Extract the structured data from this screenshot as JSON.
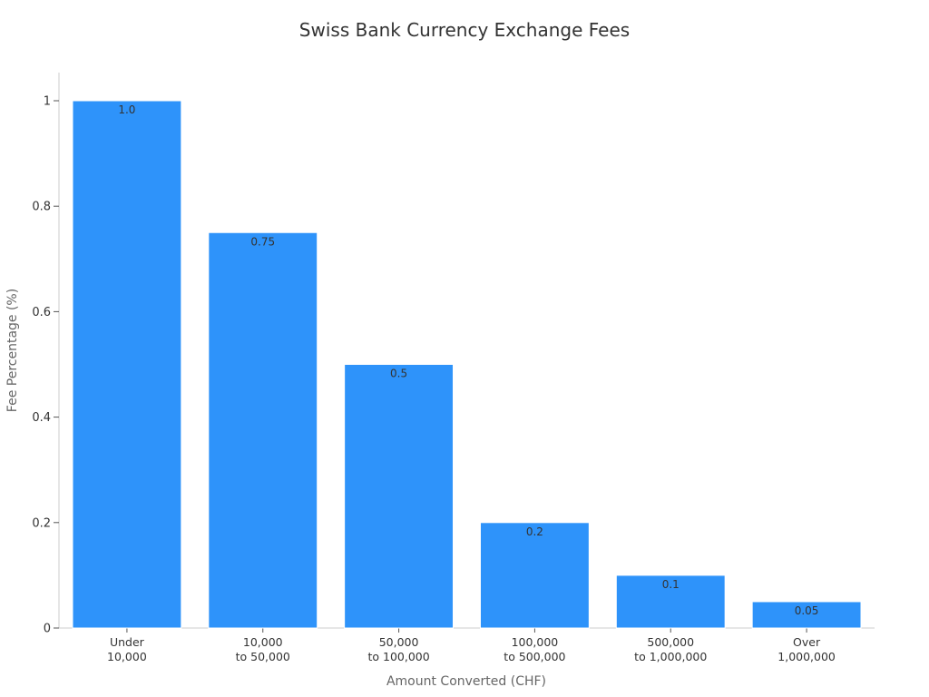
{
  "chart_data": {
    "type": "bar",
    "title": "Swiss Bank Currency Exchange Fees",
    "xlabel": "Amount Converted (CHF)",
    "ylabel": "Fee Percentage (%)",
    "categories": [
      [
        "Under",
        "10,000"
      ],
      [
        "10,000",
        "to 50,000"
      ],
      [
        "50,000",
        "to 100,000"
      ],
      [
        "100,000",
        "to 500,000"
      ],
      [
        "500,000",
        "to 1,000,000"
      ],
      [
        "Over",
        "1,000,000"
      ]
    ],
    "values": [
      1.0,
      0.75,
      0.5,
      0.2,
      0.1,
      0.05
    ],
    "data_labels": [
      "1.0",
      "0.75",
      "0.5",
      "0.2",
      "0.1",
      "0.05"
    ],
    "yticks": [
      0,
      0.2,
      0.4,
      0.6,
      0.8,
      1
    ],
    "ytick_labels": [
      "0",
      "0.2",
      "0.4",
      "0.6",
      "0.8",
      "1"
    ],
    "ylim": [
      0,
      1.05
    ],
    "grid": false,
    "bar_color": "#2e93fa",
    "axis_color": "#cccccc"
  }
}
